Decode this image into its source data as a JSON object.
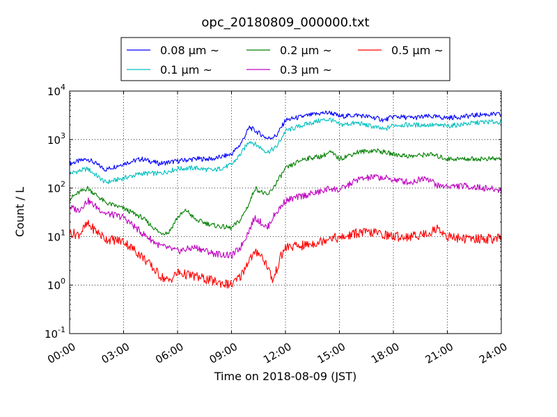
{
  "chart_data": {
    "type": "line",
    "title": "opc_20180809_000000.txt",
    "xlabel": "Time on 2018-08-09 (JST)",
    "ylabel": "Count / L",
    "x_unit": "hours",
    "xlim": [
      0,
      24
    ],
    "ylim": [
      0.1,
      10000
    ],
    "yscale": "log",
    "grid": true,
    "legend_position": "top-center",
    "x_ticks": [
      "00:00",
      "03:00",
      "06:00",
      "09:00",
      "12:00",
      "15:00",
      "18:00",
      "21:00",
      "24:00"
    ],
    "y_ticks": [
      {
        "base": "10",
        "exp": "-1"
      },
      {
        "base": "10",
        "exp": "0"
      },
      {
        "base": "10",
        "exp": "1"
      },
      {
        "base": "10",
        "exp": "2"
      },
      {
        "base": "10",
        "exp": "3"
      },
      {
        "base": "10",
        "exp": "4"
      }
    ],
    "series": [
      {
        "name": "0.08 μm ~",
        "color": "#0000ff",
        "x": [
          0,
          1,
          2,
          3,
          4,
          5,
          6,
          7,
          8,
          9,
          9.5,
          10,
          11,
          11.5,
          12,
          13,
          14,
          14.5,
          15,
          16,
          17,
          17.5,
          18,
          19,
          20,
          21,
          22,
          23,
          24
        ],
        "y": [
          320,
          400,
          240,
          320,
          400,
          320,
          360,
          400,
          400,
          500,
          800,
          1800,
          1050,
          1200,
          2500,
          3000,
          3500,
          3600,
          3000,
          3200,
          2800,
          2500,
          3000,
          2800,
          3000,
          2800,
          3000,
          3300,
          3300
        ]
      },
      {
        "name": "0.1 μm ~",
        "color": "#00bfbf",
        "x": [
          0,
          1,
          2,
          3,
          4,
          5,
          6,
          7,
          8,
          9,
          9.5,
          10,
          11,
          11.5,
          12,
          13,
          14,
          14.5,
          15,
          16,
          17,
          17.5,
          18,
          19,
          20,
          21,
          22,
          23,
          24
        ],
        "y": [
          200,
          250,
          130,
          160,
          200,
          200,
          250,
          260,
          230,
          300,
          500,
          950,
          550,
          700,
          1500,
          2000,
          2500,
          2600,
          2000,
          2200,
          1800,
          1600,
          2000,
          2000,
          2000,
          1900,
          2100,
          2300,
          2300
        ]
      },
      {
        "name": "0.2 μm ~",
        "color": "#008000",
        "x": [
          0,
          0.5,
          1,
          2,
          3,
          4,
          5,
          5.5,
          6,
          6.5,
          7,
          8,
          9,
          9.5,
          10,
          10.3,
          11,
          11.3,
          12,
          13,
          14,
          14.5,
          15,
          16,
          17,
          18,
          19,
          20,
          21,
          22,
          23,
          24
        ],
        "y": [
          60,
          80,
          100,
          50,
          38,
          25,
          12,
          12,
          25,
          35,
          22,
          17,
          15,
          22,
          50,
          100,
          70,
          100,
          250,
          400,
          450,
          550,
          400,
          550,
          600,
          500,
          450,
          500,
          400,
          400,
          400,
          400
        ]
      },
      {
        "name": "0.3 μm ~",
        "color": "#bf00bf",
        "x": [
          0,
          0.5,
          1,
          2,
          3,
          4,
          5,
          6,
          7,
          8,
          9,
          9.5,
          10,
          10.3,
          11,
          11.3,
          12,
          13,
          14,
          14.5,
          15,
          16,
          17,
          18,
          19,
          19.8,
          20.5,
          21,
          22,
          23,
          24
        ],
        "y": [
          40,
          35,
          55,
          30,
          25,
          12,
          6.5,
          5,
          6,
          4.5,
          4,
          6,
          14,
          25,
          15,
          25,
          55,
          70,
          85,
          100,
          90,
          150,
          170,
          150,
          130,
          170,
          110,
          110,
          110,
          100,
          90
        ]
      },
      {
        "name": "0.5 μm ~",
        "color": "#ff0000",
        "x": [
          0,
          0.5,
          1,
          2,
          3,
          4,
          5,
          5.5,
          6,
          7,
          8,
          9,
          9.5,
          10,
          10.5,
          11,
          11.3,
          11.7,
          12,
          13,
          14,
          14.5,
          15,
          16,
          17,
          18,
          19,
          20,
          20.5,
          21,
          22,
          23,
          24
        ],
        "y": [
          12,
          11,
          18,
          9,
          8,
          4,
          1.6,
          1.2,
          1.8,
          1.5,
          1.2,
          1.0,
          1.5,
          3.5,
          5,
          2.5,
          1.2,
          3.5,
          6,
          6.5,
          8,
          10,
          9,
          12,
          12,
          10,
          10,
          12,
          15,
          10,
          9,
          9,
          9
        ]
      }
    ]
  }
}
